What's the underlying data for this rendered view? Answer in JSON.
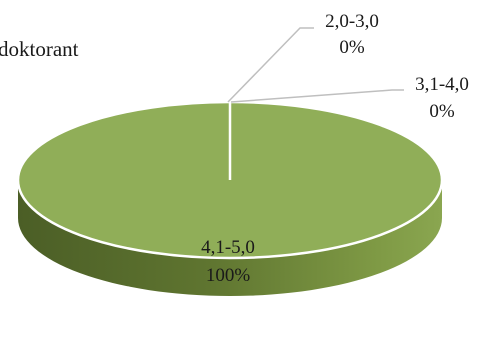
{
  "chart_data": {
    "type": "pie",
    "title": "doktorant",
    "categories": [
      "2,0-3,0",
      "3,1-4,0",
      "4,1-5,0"
    ],
    "values": [
      0,
      0,
      100
    ],
    "percent_labels": [
      "0%",
      "0%",
      "100%"
    ],
    "style": "3d",
    "colors": {
      "top": "#90ae58",
      "side_dark": "#4b5e26",
      "side_light": "#8aa650",
      "leader": "#bfbfbf"
    }
  }
}
